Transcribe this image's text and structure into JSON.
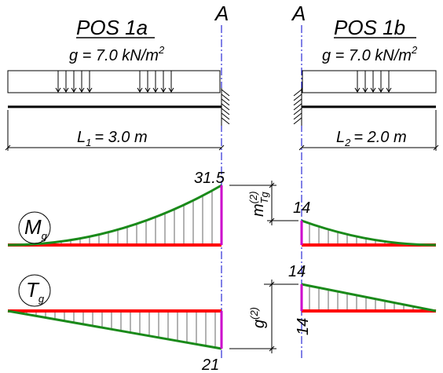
{
  "left": {
    "title": "POS 1a",
    "load": "g = 7.0 kN/m",
    "load_exp": "2",
    "span_prefix": "L",
    "span_sub": "1",
    "span_value": "= 3.0 m"
  },
  "right": {
    "title": "POS 1b",
    "load": "g = 7.0 kN/m",
    "load_exp": "2",
    "span_prefix": "L",
    "span_sub": "2",
    "span_value": "= 2.0 m"
  },
  "section": {
    "left": "A",
    "right": "A"
  },
  "moment": {
    "symbol": "M",
    "symbol_sub": "g",
    "value_left": "31.5",
    "value_right": "14",
    "diff_label": "m",
    "diff_sup": "(2)",
    "diff_sub": "Tg"
  },
  "shear": {
    "symbol": "T",
    "symbol_sub": "g",
    "value_top": "14",
    "value_right_bottom": "14",
    "value_left_bottom": "21",
    "diff_label": "g",
    "diff_sup": "(2)"
  },
  "colors": {
    "baseline": "#ff0000",
    "curve": "#1a8a1a",
    "section_line": "#0000cc",
    "support_value": "#cc00cc",
    "structure": "#000000"
  }
}
